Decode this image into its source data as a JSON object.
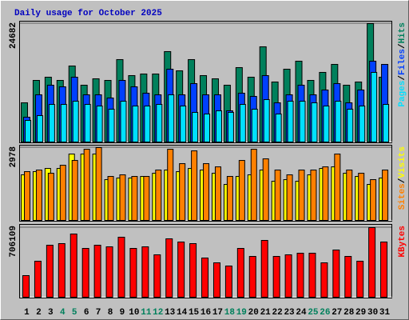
{
  "chart_data": [
    {
      "type": "bar",
      "title": "Daily usage for October 2025",
      "legend_separator": "/",
      "ylim": [
        0,
        24682
      ],
      "yticks": [
        24682
      ],
      "series": [
        {
          "name": "Hits",
          "color": "#00805c",
          "values": [
            8173,
            12843,
            13511,
            12843,
            15846,
            11843,
            13177,
            12843,
            17180,
            13844,
            14178,
            14178,
            18848,
            14845,
            17180,
            13844,
            13177,
            11843,
            15512,
            13511,
            19849,
            12510,
            15179,
            16847,
            12843,
            14512,
            16180,
            11843,
            12510,
            24682,
            13511
          ]
        },
        {
          "name": "Files",
          "color": "#0040ff",
          "values": [
            5171,
            9841,
            11843,
            11509,
            13511,
            9841,
            9841,
            9174,
            12843,
            11509,
            10175,
            9841,
            15179,
            9841,
            12176,
            9841,
            9841,
            6505,
            10175,
            9508,
            13844,
            8173,
            9841,
            11843,
            9841,
            10842,
            12176,
            8173,
            10842,
            16847,
            16180
          ]
        },
        {
          "name": "Pages",
          "color": "#00e0ff",
          "values": [
            4504,
            5504,
            7840,
            7840,
            8507,
            7840,
            7506,
            6839,
            8507,
            7506,
            7506,
            7840,
            9841,
            7506,
            6172,
            5838,
            6505,
            6172,
            7840,
            6839,
            8840,
            5838,
            8507,
            8507,
            8173,
            7506,
            8507,
            6839,
            7506,
            14512,
            7840
          ]
        }
      ]
    },
    {
      "type": "bar",
      "ylim": [
        0,
        2978
      ],
      "yticks": [
        2978
      ],
      "series": [
        {
          "name": "Visits",
          "color": "#ffff00",
          "values": [
            1864,
            1995,
            2126,
            2126,
            2714,
            2714,
            2714,
            1668,
            1733,
            1733,
            1799,
            1929,
            2060,
            1995,
            2126,
            2060,
            1929,
            1472,
            1799,
            1864,
            2060,
            1602,
            1668,
            1602,
            1864,
            2126,
            2191,
            1929,
            1799,
            1472,
            1733
          ]
        },
        {
          "name": "Sites",
          "color": "#ff8000",
          "values": [
            1995,
            2060,
            1929,
            2256,
            2453,
            2910,
            2978,
            1799,
            1864,
            1799,
            1799,
            2060,
            2910,
            2322,
            2845,
            2322,
            2191,
            1799,
            2453,
            2910,
            2518,
            2060,
            1864,
            2060,
            2060,
            2191,
            2714,
            2060,
            1929,
            1668,
            2060
          ]
        }
      ]
    },
    {
      "type": "bar",
      "ylim": [
        0,
        706109
      ],
      "yticks": [
        706109
      ],
      "categories": [
        "1",
        "2",
        "3",
        "4",
        "5",
        "6",
        "7",
        "8",
        "9",
        "10",
        "11",
        "12",
        "13",
        "14",
        "15",
        "16",
        "17",
        "18",
        "19",
        "20",
        "21",
        "22",
        "23",
        "24",
        "25",
        "26",
        "27",
        "28",
        "29",
        "30",
        "31"
      ],
      "category_colors": [
        "#000000",
        "#000000",
        "#000000",
        "#00805c",
        "#00805c",
        "#000000",
        "#000000",
        "#000000",
        "#000000",
        "#000000",
        "#00805c",
        "#00805c",
        "#000000",
        "#000000",
        "#000000",
        "#000000",
        "#000000",
        "#00805c",
        "#00805c",
        "#000000",
        "#000000",
        "#000000",
        "#000000",
        "#000000",
        "#00805c",
        "#00805c",
        "#000000",
        "#000000",
        "#000000",
        "#000000",
        "#000000"
      ],
      "series": [
        {
          "name": "KBytes",
          "color": "#ff0000",
          "values": [
            219132,
            365220,
            527540,
            543772,
            641164,
            495076,
            527540,
            511308,
            608700,
            495076,
            511308,
            430148,
            592468,
            560004,
            543772,
            397684,
            348988,
            316524,
            495076,
            413916,
            576236,
            413916,
            430148,
            446380,
            446380,
            348988,
            478844,
            413916,
            365220,
            706109,
            560004
          ]
        }
      ]
    }
  ]
}
